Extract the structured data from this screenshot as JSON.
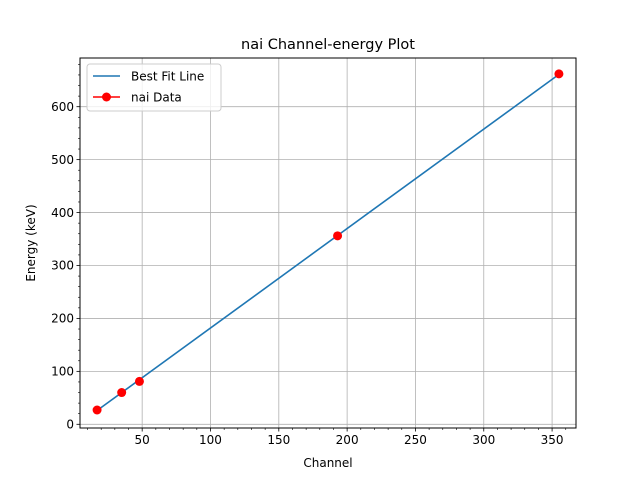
{
  "chart_data": {
    "type": "line",
    "title": "nai Channel-energy Plot",
    "xlabel": "Channel",
    "ylabel": "Energy (keV)",
    "xlim": [
      4.5,
      367.5
    ],
    "ylim": [
      -7,
      692
    ],
    "xticks": [
      50,
      100,
      150,
      200,
      250,
      300,
      350
    ],
    "yticks": [
      0,
      100,
      200,
      300,
      400,
      500,
      600
    ],
    "grid": true,
    "minor_ticks": true,
    "legend_position": "top-left",
    "series": [
      {
        "name": "Best Fit Line",
        "kind": "line",
        "color": "#1f77b4",
        "x": [
          17,
          355
        ],
        "y": [
          26,
          661
        ]
      },
      {
        "name": "nai Data",
        "kind": "markers",
        "color": "#ff0000",
        "x": [
          17,
          35,
          48,
          193,
          355
        ],
        "y": [
          27,
          60,
          81,
          356,
          662
        ]
      }
    ]
  }
}
